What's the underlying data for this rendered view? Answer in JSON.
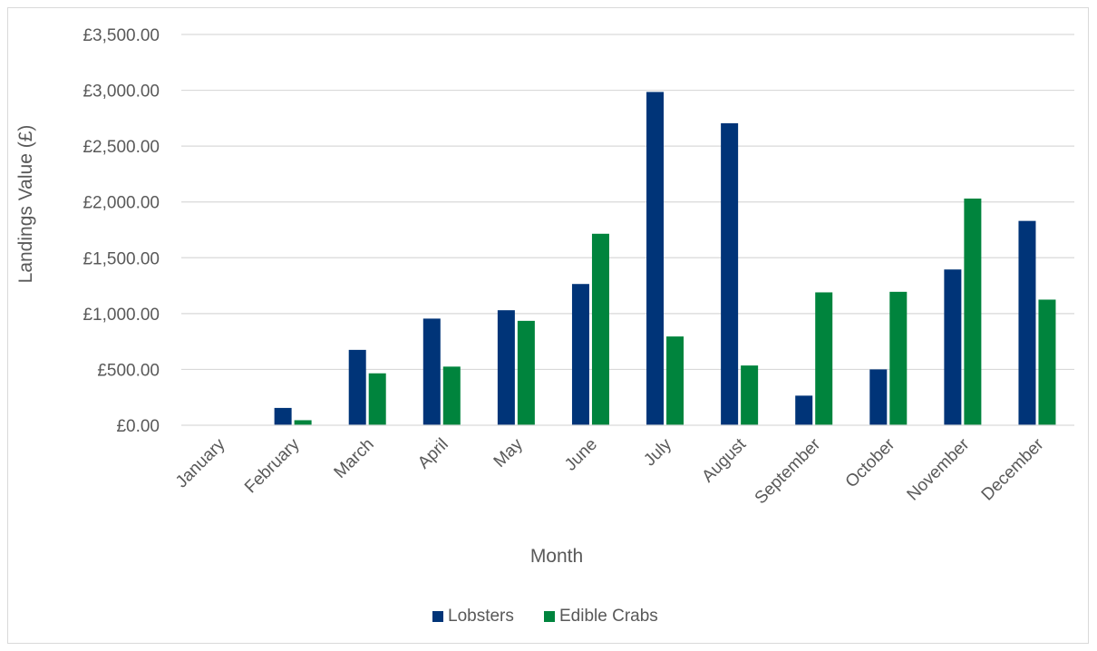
{
  "chart_data": {
    "type": "bar",
    "title": "",
    "xlabel": "Month",
    "ylabel": "Landings Value (£)",
    "ylim": [
      0,
      3500
    ],
    "yticks": [
      0,
      500,
      1000,
      1500,
      2000,
      2500,
      3000,
      3500
    ],
    "ytick_labels": [
      "£0.00",
      "£500.00",
      "£1,000.00",
      "£1,500.00",
      "£2,000.00",
      "£2,500.00",
      "£3,000.00",
      "£3,500.00"
    ],
    "categories": [
      "January",
      "February",
      "March",
      "April",
      "May",
      "June",
      "July",
      "August",
      "September",
      "October",
      "November",
      "December"
    ],
    "series": [
      {
        "name": "Lobsters",
        "color": "#003478",
        "values": [
          0,
          155,
          675,
          955,
          1030,
          1265,
          2985,
          2705,
          265,
          500,
          1395,
          1830
        ]
      },
      {
        "name": "Edible Crabs",
        "color": "#00843d",
        "values": [
          0,
          45,
          465,
          525,
          935,
          1715,
          795,
          535,
          1190,
          1195,
          2030,
          1125
        ]
      }
    ],
    "grid": true,
    "legend_position": "bottom"
  }
}
